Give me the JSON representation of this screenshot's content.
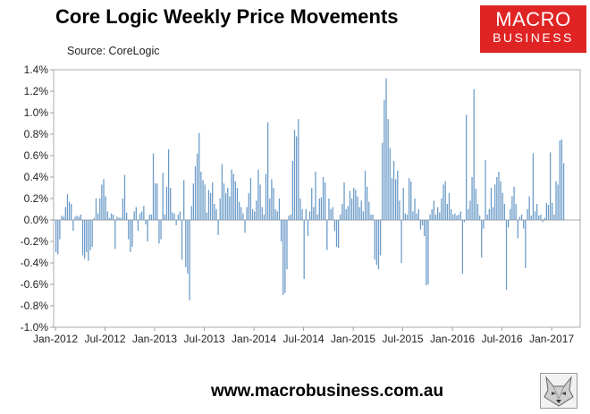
{
  "header": {
    "title": "Core Logic Weekly Price Movements",
    "source": "Source: CoreLogic"
  },
  "logo": {
    "line1": "MACRO",
    "line2": "BUSINESS",
    "background": "#e02424"
  },
  "footer": {
    "url": "www.macrobusiness.com.au",
    "mascot_icon": "wolf-logo-icon"
  },
  "chart_data": {
    "type": "bar",
    "title": "Core Logic Weekly Price Movements",
    "subtitle": "Source: CoreLogic",
    "bar_color": "#6b9bc8",
    "ylim": [
      -1.0,
      1.4
    ],
    "y_ticks": [
      -1.0,
      -0.8,
      -0.6,
      -0.4,
      -0.2,
      0.0,
      0.2,
      0.4,
      0.6,
      0.8,
      1.0,
      1.2,
      1.4
    ],
    "y_tick_labels": [
      "-1.0%",
      "-0.8%",
      "-0.6%",
      "-0.4%",
      "-0.2%",
      "0.0%",
      "0.2%",
      "0.4%",
      "0.6%",
      "0.8%",
      "1.0%",
      "1.2%",
      "1.4%"
    ],
    "x_tick_labels": [
      "Jan-2012",
      "Jul-2012",
      "Jan-2013",
      "Jul-2013",
      "Jan-2014",
      "Jul-2014",
      "Jan-2015",
      "Jul-2015",
      "Jan-2016",
      "Jul-2016",
      "Jan-2017"
    ],
    "grid": false,
    "legend": "none",
    "x_start": "2012-01",
    "frequency": "weekly",
    "values": [
      -0.3,
      -0.32,
      -0.18,
      0.04,
      0.03,
      0.12,
      0.24,
      0.17,
      0.15,
      -0.1,
      0.03,
      0.04,
      0.03,
      0.05,
      -0.33,
      -0.36,
      -0.3,
      -0.38,
      -0.28,
      -0.25,
      0.02,
      0.2,
      0.06,
      0.2,
      0.33,
      0.38,
      0.22,
      0.08,
      0.02,
      0.06,
      0.05,
      -0.27,
      0.03,
      0.02,
      0.02,
      0.2,
      0.42,
      0.07,
      -0.18,
      -0.3,
      -0.25,
      0.08,
      0.12,
      -0.1,
      0.06,
      0.08,
      0.13,
      -0.04,
      -0.2,
      0.05,
      0.05,
      0.62,
      0.34,
      0.34,
      -0.22,
      -0.18,
      0.44,
      0.05,
      0.31,
      0.66,
      0.3,
      0.07,
      0.06,
      -0.05,
      0.05,
      0.08,
      -0.37,
      0.37,
      -0.44,
      -0.5,
      -0.75,
      0.13,
      0.34,
      0.5,
      0.62,
      0.81,
      0.45,
      0.37,
      0.33,
      0.07,
      0.28,
      0.25,
      0.35,
      0.15,
      0.1,
      -0.14,
      0.2,
      0.52,
      0.34,
      0.25,
      0.3,
      0.22,
      0.47,
      0.43,
      0.36,
      0.3,
      0.17,
      0.12,
      0.06,
      -0.12,
      0.12,
      0.25,
      0.39,
      0.1,
      0.08,
      0.18,
      0.47,
      0.33,
      0.12,
      0.05,
      0.43,
      0.91,
      0.2,
      0.38,
      0.3,
      0.1,
      0.08,
      0.2,
      -0.2,
      -0.7,
      -0.68,
      -0.46,
      0.04,
      0.05,
      0.55,
      0.84,
      0.78,
      0.94,
      0.2,
      0.1,
      -0.55,
      0.1,
      -0.15,
      0.08,
      0.3,
      0.12,
      0.45,
      0.05,
      0.2,
      0.21,
      0.4,
      0.35,
      -0.28,
      0.2,
      0.1,
      0.12,
      -0.1,
      -0.25,
      -0.26,
      0.05,
      0.15,
      0.35,
      0.1,
      0.13,
      0.27,
      0.2,
      0.3,
      0.28,
      0.22,
      0.12,
      0.18,
      0.08,
      0.46,
      0.31,
      0.17,
      0.05,
      0.05,
      -0.37,
      -0.42,
      -0.46,
      -0.33,
      0.72,
      1.12,
      1.32,
      0.94,
      0.67,
      0.39,
      0.55,
      0.38,
      0.46,
      0.18,
      -0.4,
      0.3,
      0.06,
      0.05,
      0.39,
      0.36,
      0.08,
      0.2,
      0.06,
      0.1,
      -0.09,
      -0.05,
      -0.15,
      -0.61,
      -0.6,
      0.05,
      0.1,
      0.18,
      0.05,
      0.12,
      0.07,
      0.2,
      0.33,
      0.36,
      0.15,
      0.25,
      0.1,
      0.05,
      0.06,
      0.04,
      0.05,
      0.08,
      -0.5,
      -0.02,
      0.98,
      0.1,
      0.18,
      0.4,
      1.22,
      0.29,
      0.15,
      0.04,
      -0.35,
      -0.08,
      0.56,
      0.05,
      0.1,
      0.3,
      0.12,
      0.33,
      0.4,
      0.45,
      0.36,
      0.25,
      0.15,
      -0.65,
      -0.07,
      0.1,
      0.22,
      0.31,
      0.15,
      -0.17,
      0.03,
      0.05,
      -0.08,
      -0.45,
      0.1,
      0.22,
      0.04,
      0.62,
      0.08,
      0.15,
      0.04,
      0.05,
      -0.02,
      0.02,
      0.16,
      0.14,
      0.63,
      0.16,
      0.05,
      0.36,
      0.33,
      0.74,
      0.75,
      0.53
    ]
  }
}
